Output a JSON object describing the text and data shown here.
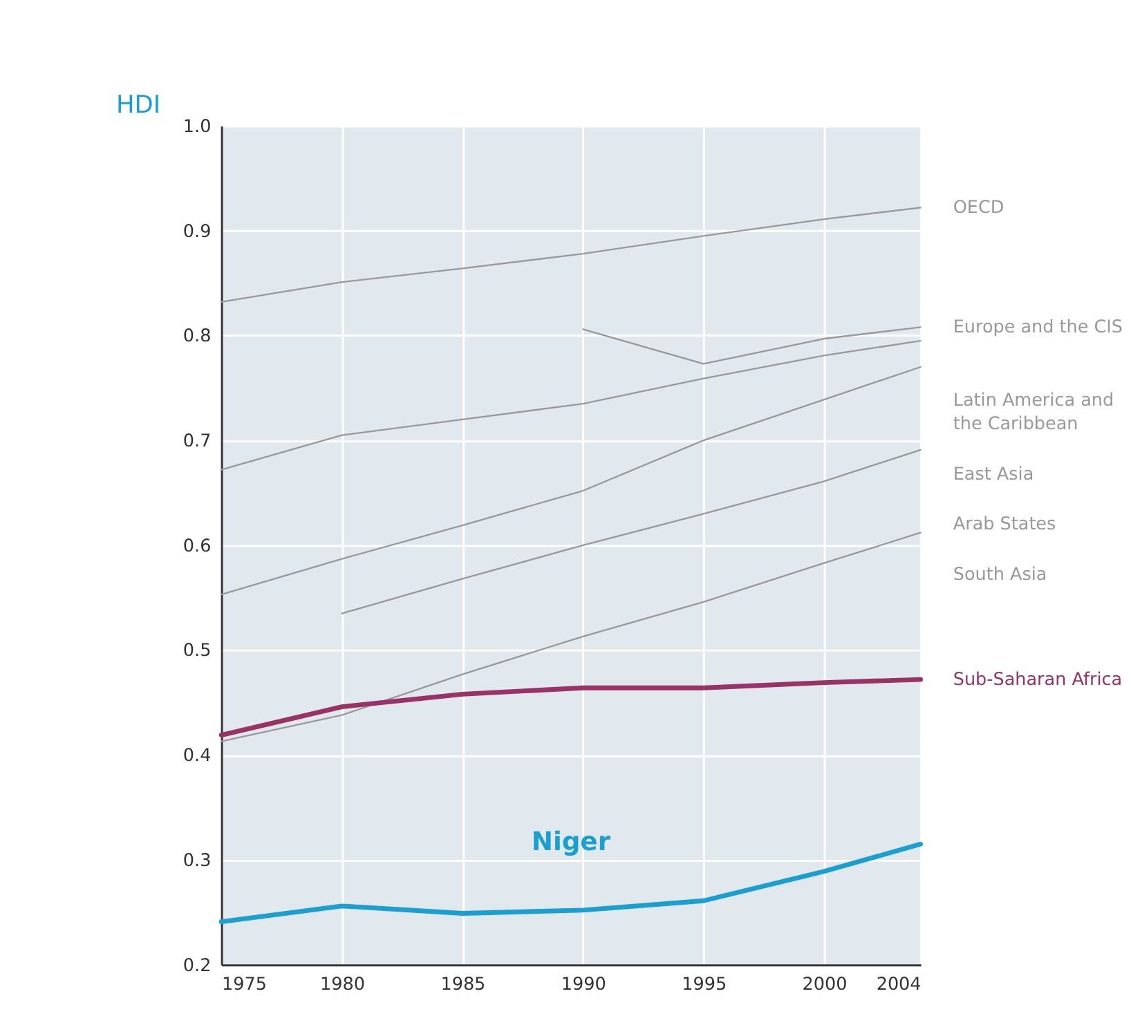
{
  "chart_data": {
    "type": "line",
    "ylabel": "HDI",
    "x": [
      1975,
      1980,
      1985,
      1990,
      1995,
      2000,
      2004
    ],
    "xlim": [
      1975,
      2004
    ],
    "xticks": [
      1975,
      1980,
      1985,
      1990,
      1995,
      2000,
      2004
    ],
    "ylim": [
      0.2,
      1.0
    ],
    "yticks": [
      {
        "value": 0.2,
        "label": "0.2"
      },
      {
        "value": 0.3,
        "label": "0.3"
      },
      {
        "value": 0.4,
        "label": "0.4"
      },
      {
        "value": 0.5,
        "label": "0.5"
      },
      {
        "value": 0.6,
        "label": "0.6"
      },
      {
        "value": 0.7,
        "label": "0.7"
      },
      {
        "value": 0.8,
        "label": "0.8"
      },
      {
        "value": 0.9,
        "label": "0.9"
      },
      {
        "value": 1.0,
        "label": "1.0"
      }
    ],
    "grid": true,
    "marker": "none",
    "line_style": "solid",
    "series": [
      {
        "name": "OECD",
        "color": "#999999",
        "values": [
          0.832,
          0.851,
          0.864,
          0.878,
          0.895,
          0.911,
          0.922
        ]
      },
      {
        "name": "Europe and the CIS",
        "color": "#999999",
        "values": [
          null,
          null,
          null,
          0.806,
          0.773,
          0.797,
          0.808
        ]
      },
      {
        "name": "Latin America and the Caribbean",
        "color": "#999999",
        "values": [
          0.672,
          0.705,
          0.72,
          0.735,
          0.759,
          0.781,
          0.795
        ]
      },
      {
        "name": "East Asia",
        "color": "#999999",
        "values": [
          0.553,
          0.587,
          0.619,
          0.652,
          0.7,
          0.739,
          0.77
        ]
      },
      {
        "name": "Arab States",
        "color": "#999999",
        "values": [
          null,
          0.535,
          0.568,
          0.6,
          0.63,
          0.661,
          0.691
        ]
      },
      {
        "name": "South Asia",
        "color": "#999999",
        "values": [
          0.413,
          0.438,
          0.477,
          0.513,
          0.546,
          0.583,
          0.612
        ]
      },
      {
        "name": "Sub-Saharan Africa",
        "color": "#993366",
        "values": [
          0.419,
          0.446,
          0.458,
          0.464,
          0.464,
          0.469,
          0.472
        ]
      },
      {
        "color": "#1a9fd0",
        "values": [
          0.241,
          0.256,
          0.249,
          0.252,
          0.261,
          0.289,
          0.315
        ]
      }
    ],
    "annotations": [
      "Niger"
    ]
  }
}
